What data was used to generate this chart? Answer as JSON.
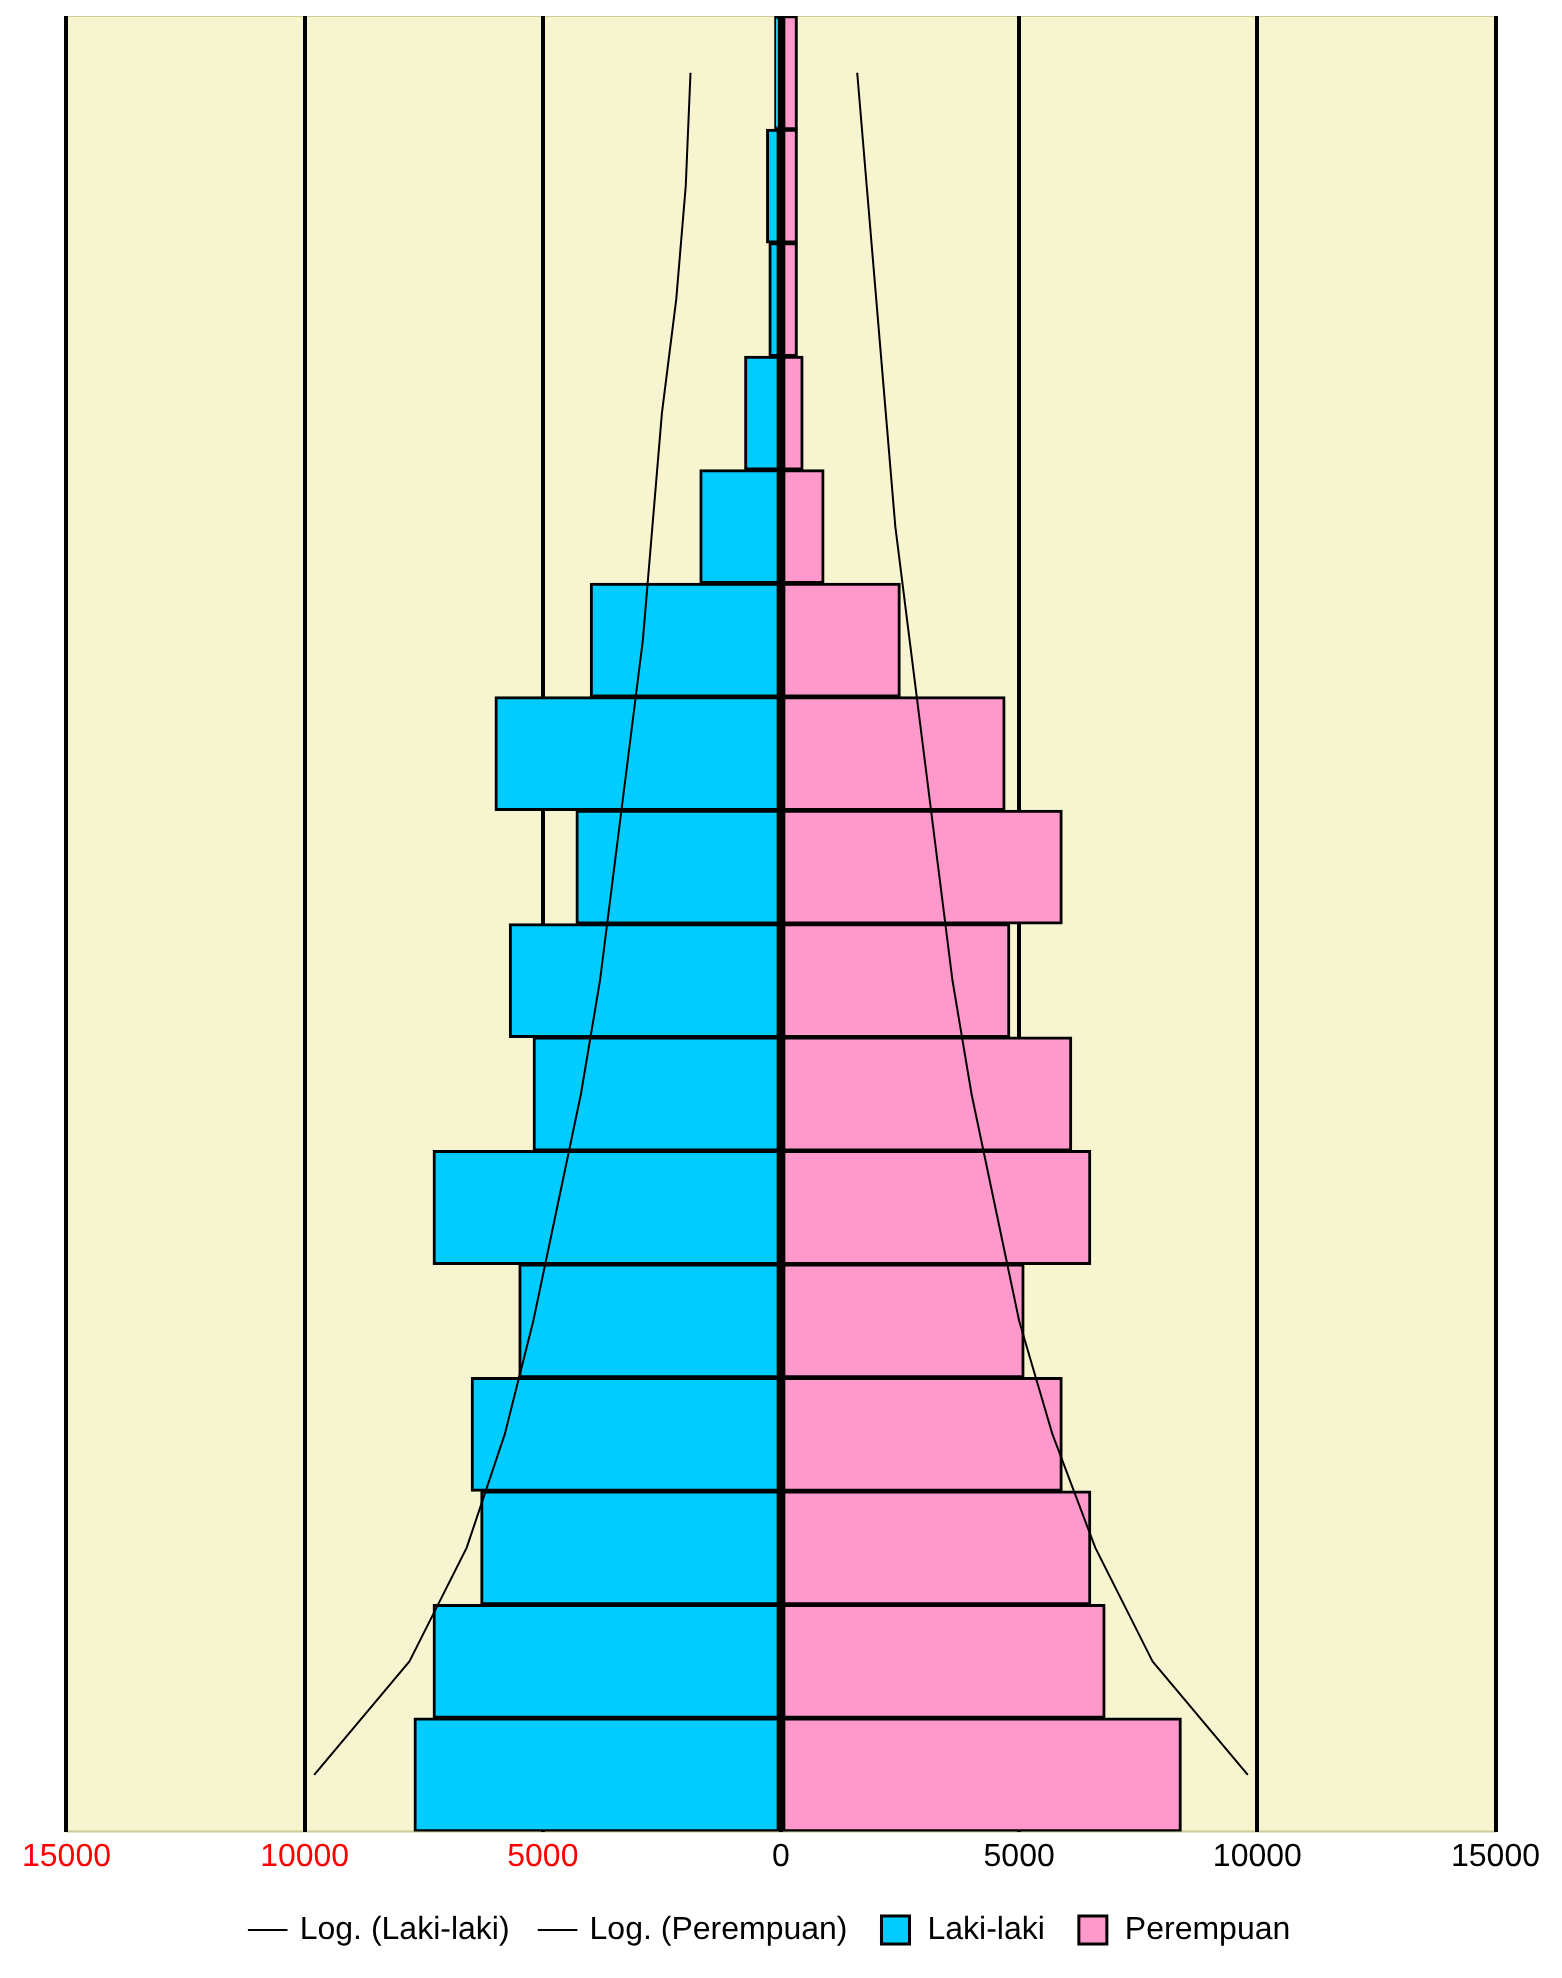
{
  "chart_data": {
    "type": "bar",
    "orientation": "horizontal",
    "stacked": true,
    "categories": [
      null,
      null,
      null,
      null,
      null,
      null,
      null,
      null,
      null,
      null,
      null,
      null,
      null,
      null,
      null,
      null
    ],
    "series": [
      {
        "name": "Laki-laki",
        "color": "#00ccff",
        "values": [
          -130,
          -300,
          -250,
          -760,
          -1700,
          -4000,
          -6000,
          -4300,
          -5700,
          -5200,
          -7300,
          -5500,
          -6500,
          -6300,
          -7300,
          -7700
        ]
      },
      {
        "name": "Perempuan",
        "color": "#ff99cc",
        "values": [
          340,
          340,
          340,
          460,
          900,
          2500,
          4700,
          5900,
          4800,
          6100,
          6500,
          5100,
          5900,
          6500,
          6800,
          8400
        ]
      },
      {
        "name": "Log. (Laki-laki)",
        "type": "line",
        "color": "#000000",
        "values": [
          -1900,
          -2000,
          -2200,
          -2500,
          -2700,
          -2900,
          -3200,
          -3500,
          -3800,
          -4200,
          -4700,
          -5200,
          -5800,
          -6600,
          -7800,
          -9800
        ]
      },
      {
        "name": "Log. (Perempuan)",
        "type": "line",
        "color": "#000000",
        "values": [
          1600,
          1800,
          2000,
          2200,
          2400,
          2700,
          3000,
          3300,
          3600,
          4000,
          4500,
          5000,
          5700,
          6600,
          7800,
          9800
        ]
      }
    ],
    "xlim": [
      -15000,
      15000
    ],
    "xticks": [
      {
        "value": -15000,
        "label": "15000"
      },
      {
        "value": -10000,
        "label": "10000"
      },
      {
        "value": -5000,
        "label": "5000"
      },
      0,
      5000,
      10000,
      15000
    ],
    "grid": "x",
    "legend": "bottom",
    "marker": "none",
    "line_style": "solid"
  }
}
